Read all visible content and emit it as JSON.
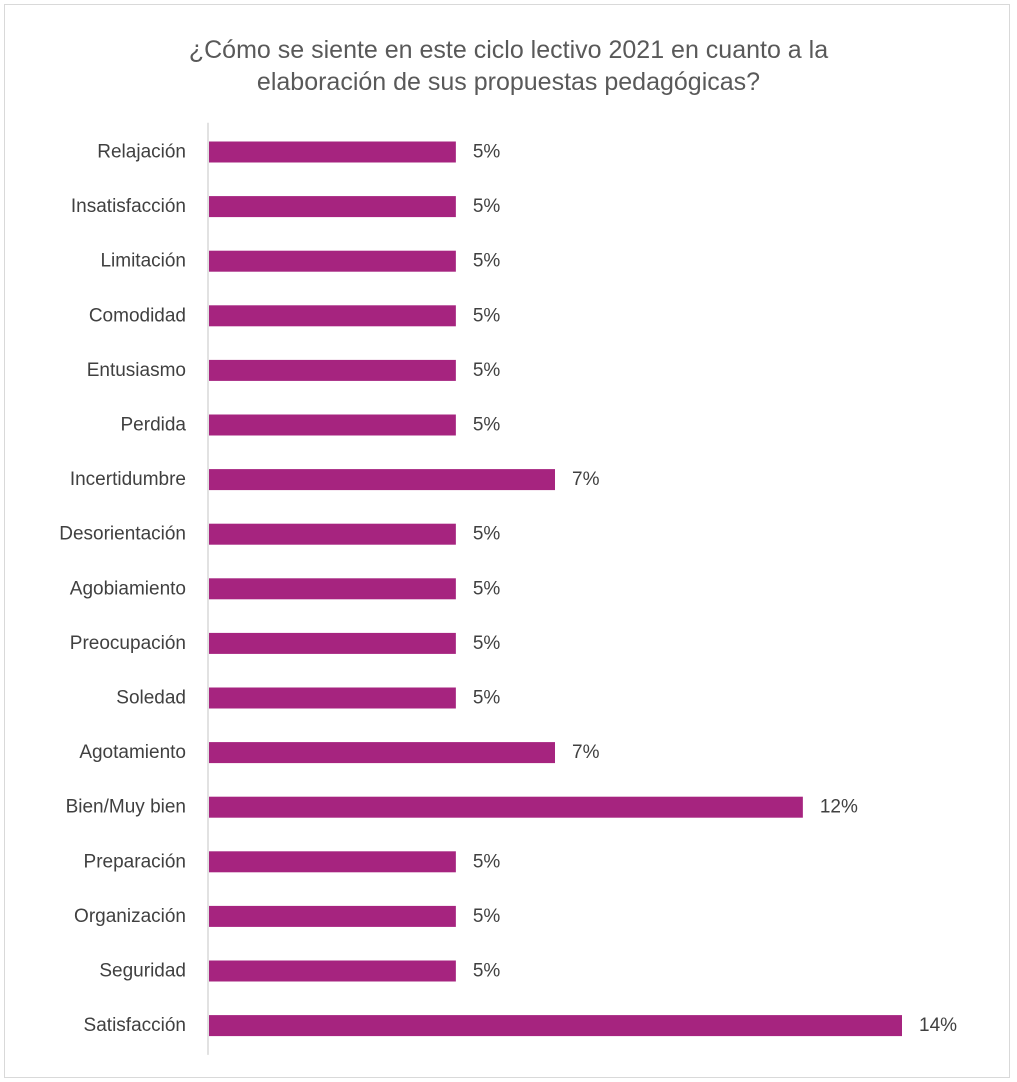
{
  "chart_data": {
    "type": "bar",
    "orientation": "horizontal",
    "title_lines": [
      "¿Cómo se siente en este ciclo lectivo 2021 en cuanto a la",
      "elaboración de sus propuestas pedagógicas?"
    ],
    "categories": [
      "Relajación",
      "Insatisfacción",
      "Limitación",
      "Comodidad",
      "Entusiasmo",
      "Perdida",
      "Incertidumbre",
      "Desorientación",
      "Agobiamiento",
      "Preocupación",
      "Soledad",
      "Agotamiento",
      "Bien/Muy bien",
      "Preparación",
      "Organización",
      "Seguridad",
      "Satisfacción"
    ],
    "values": [
      5,
      5,
      5,
      5,
      5,
      5,
      7,
      5,
      5,
      5,
      5,
      7,
      12,
      5,
      5,
      5,
      14
    ],
    "value_labels": [
      "5%",
      "5%",
      "5%",
      "5%",
      "5%",
      "5%",
      "7%",
      "5%",
      "5%",
      "5%",
      "5%",
      "7%",
      "12%",
      "5%",
      "5%",
      "5%",
      "14%"
    ],
    "unit": "%",
    "xlim": [
      0,
      14
    ],
    "xlabel": "",
    "ylabel": "",
    "grid": false,
    "legend": "none",
    "bar_color": "#A6247F",
    "axis_color": "#d9d9d9",
    "text_color": "#404040"
  }
}
